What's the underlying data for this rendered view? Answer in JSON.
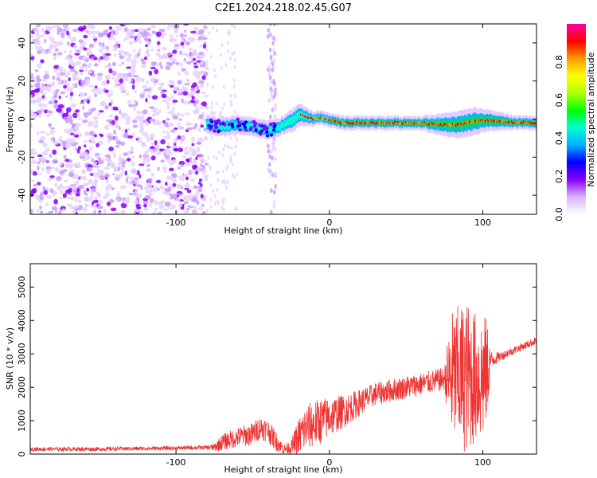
{
  "title": "C2E1.2024.218.02.45.G07",
  "chart_data": [
    {
      "type": "heatmap",
      "name": "spectrogram",
      "xlabel": "Height of straight line (km)",
      "ylabel": "Frequency (Hz)",
      "xlim": [
        -195,
        135
      ],
      "ylim": [
        -50,
        50
      ],
      "xticks": [
        -100,
        0,
        100
      ],
      "yticks": [
        -40,
        -20,
        0,
        20,
        40
      ],
      "colorbar": {
        "label": "Normalized spectral amplitude",
        "range": [
          0,
          1
        ],
        "ticks": [
          0.0,
          0.2,
          0.4,
          0.6,
          0.8
        ],
        "colors": [
          "#ffffff",
          "#d9b3ff",
          "#8a00ff",
          "#0000ff",
          "#00b0ff",
          "#00ffd0",
          "#00ff00",
          "#b0ff00",
          "#ffff00",
          "#ff9900",
          "#ff0000",
          "#ff00a0"
        ]
      },
      "signal_track": {
        "x": [
          -80,
          -70,
          -60,
          -50,
          -45,
          -40,
          -35,
          -30,
          -25,
          -20,
          -15,
          -10,
          -5,
          0,
          10,
          20,
          40,
          60,
          75,
          85,
          90,
          95,
          100,
          110,
          120,
          135
        ],
        "center": [
          -3,
          -4,
          -3,
          -4,
          -5,
          -6,
          -5,
          -3,
          -1,
          2,
          1,
          0,
          1,
          -1,
          -2,
          -2,
          -2,
          -2,
          -3,
          -3,
          -2,
          -1,
          -1,
          -1,
          -2,
          -2
        ],
        "width": [
          4,
          4,
          4,
          4,
          4,
          4,
          4,
          4,
          5,
          5,
          4,
          3,
          3,
          3,
          3,
          3,
          3,
          3,
          5,
          6,
          6,
          6,
          5,
          4,
          3,
          3
        ]
      },
      "noise_region_x": [
        -195,
        -80
      ]
    },
    {
      "type": "line",
      "name": "snr",
      "xlabel": "Height of straight line (km)",
      "ylabel": "SNR (10 * v/v)",
      "xlim": [
        -195,
        135
      ],
      "ylim": [
        0,
        5700
      ],
      "xticks": [
        -100,
        0,
        100
      ],
      "yticks": [
        0,
        1000,
        2000,
        3000,
        4000,
        5000
      ],
      "color": "#ee3333",
      "envelope": {
        "x": [
          -195,
          -150,
          -100,
          -80,
          -75,
          -70,
          -60,
          -50,
          -45,
          -40,
          -35,
          -30,
          -25,
          -20,
          -15,
          -10,
          -5,
          0,
          10,
          20,
          30,
          40,
          50,
          60,
          70,
          75,
          78,
          80,
          85,
          90,
          95,
          100,
          103,
          105,
          110,
          120,
          130,
          135
        ],
        "mean": [
          150,
          150,
          180,
          200,
          200,
          350,
          500,
          600,
          800,
          700,
          400,
          150,
          200,
          500,
          800,
          900,
          1000,
          1100,
          1300,
          1550,
          1800,
          1900,
          2000,
          2100,
          2200,
          2250,
          2300,
          2300,
          2300,
          2300,
          2300,
          2300,
          2500,
          2800,
          2900,
          3100,
          3300,
          3400
        ],
        "amp": [
          60,
          60,
          60,
          60,
          120,
          250,
          300,
          350,
          350,
          350,
          300,
          150,
          200,
          600,
          700,
          700,
          700,
          600,
          500,
          400,
          350,
          350,
          350,
          350,
          350,
          350,
          1500,
          2000,
          2200,
          2300,
          2000,
          2000,
          1500,
          300,
          150,
          120,
          120,
          120
        ]
      }
    }
  ]
}
